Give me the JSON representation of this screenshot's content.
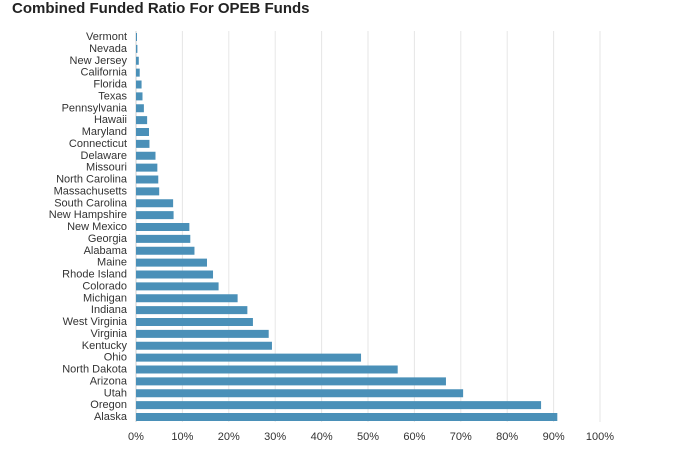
{
  "chart_data": {
    "type": "bar",
    "orientation": "horizontal",
    "title": "Combined Funded Ratio For OPEB Funds",
    "xlabel": "",
    "ylabel": "",
    "categories": [
      "Vermont",
      "Nevada",
      "New Jersey",
      "California",
      "Florida",
      "Texas",
      "Pennsylvania",
      "Hawaii",
      "Maryland",
      "Connecticut",
      "Delaware",
      "Missouri",
      "North Carolina",
      "Massachusetts",
      "South Carolina",
      "New Hampshire",
      "New Mexico",
      "Georgia",
      "Alabama",
      "Maine",
      "Rhode Island",
      "Colorado",
      "Michigan",
      "Indiana",
      "West Virginia",
      "Virginia",
      "Kentucky",
      "Ohio",
      "North Dakota",
      "Arizona",
      "Utah",
      "Oregon",
      "Alaska"
    ],
    "values": [
      0.2,
      0.3,
      0.6,
      0.8,
      1.2,
      1.4,
      1.7,
      2.4,
      2.8,
      2.9,
      4.2,
      4.6,
      4.8,
      5.0,
      8.0,
      8.1,
      11.5,
      11.7,
      12.6,
      15.3,
      16.6,
      17.8,
      21.9,
      24.0,
      25.2,
      28.6,
      29.3,
      48.5,
      56.4,
      66.8,
      70.5,
      87.3,
      90.8
    ],
    "xlim": [
      0,
      100
    ],
    "xticks": [
      "0%",
      "10%",
      "20%",
      "30%",
      "40%",
      "50%",
      "60%",
      "70%",
      "80%",
      "90%",
      "100%"
    ],
    "grid": true,
    "bar_color": "#4a90b8",
    "grid_color": "#e6e6e6"
  }
}
